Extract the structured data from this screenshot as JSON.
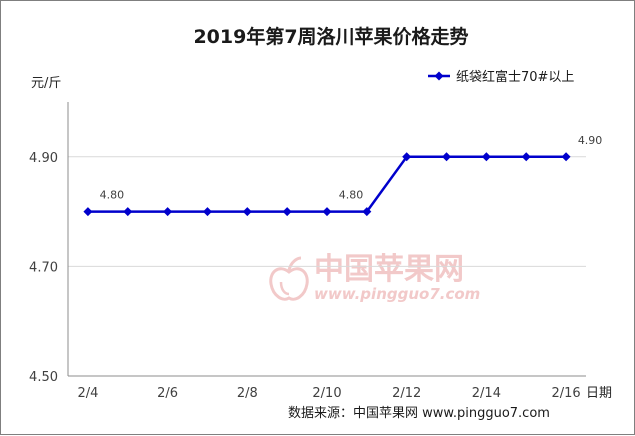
{
  "chart_data": {
    "type": "line",
    "title": "2019年第7周洛川苹果价格走势",
    "ylabel": "元/斤",
    "xlabel": "日期",
    "ylim": [
      4.5,
      5.0
    ],
    "yticks": [
      "4.50",
      "4.70",
      "4.90"
    ],
    "grid": "horizontal",
    "legend_position": "top-right",
    "x": [
      "2/4",
      "2/5",
      "2/6",
      "2/7",
      "2/8",
      "2/9",
      "2/10",
      "2/11",
      "2/12",
      "2/13",
      "2/14",
      "2/15",
      "2/16"
    ],
    "x_tick_labels": [
      "2/4",
      "2/6",
      "2/8",
      "2/10",
      "2/12",
      "2/14",
      "2/16"
    ],
    "series": [
      {
        "name": "纸袋红富士70#以上",
        "color": "#0000cc",
        "values": [
          4.8,
          4.8,
          4.8,
          4.8,
          4.8,
          4.8,
          4.8,
          4.8,
          4.9,
          4.9,
          4.9,
          4.9,
          4.9
        ]
      }
    ],
    "data_labels": [
      {
        "x": "2/4",
        "text": "4.80"
      },
      {
        "x": "2/10",
        "text": "4.80"
      },
      {
        "x": "2/16",
        "text": "4.90"
      }
    ],
    "source": "数据来源：中国苹果网 www.pingguo7.com"
  },
  "watermark": {
    "cn": "中国苹果网",
    "en": "www.pingguo7.com",
    "color": "#f2c9c9"
  }
}
